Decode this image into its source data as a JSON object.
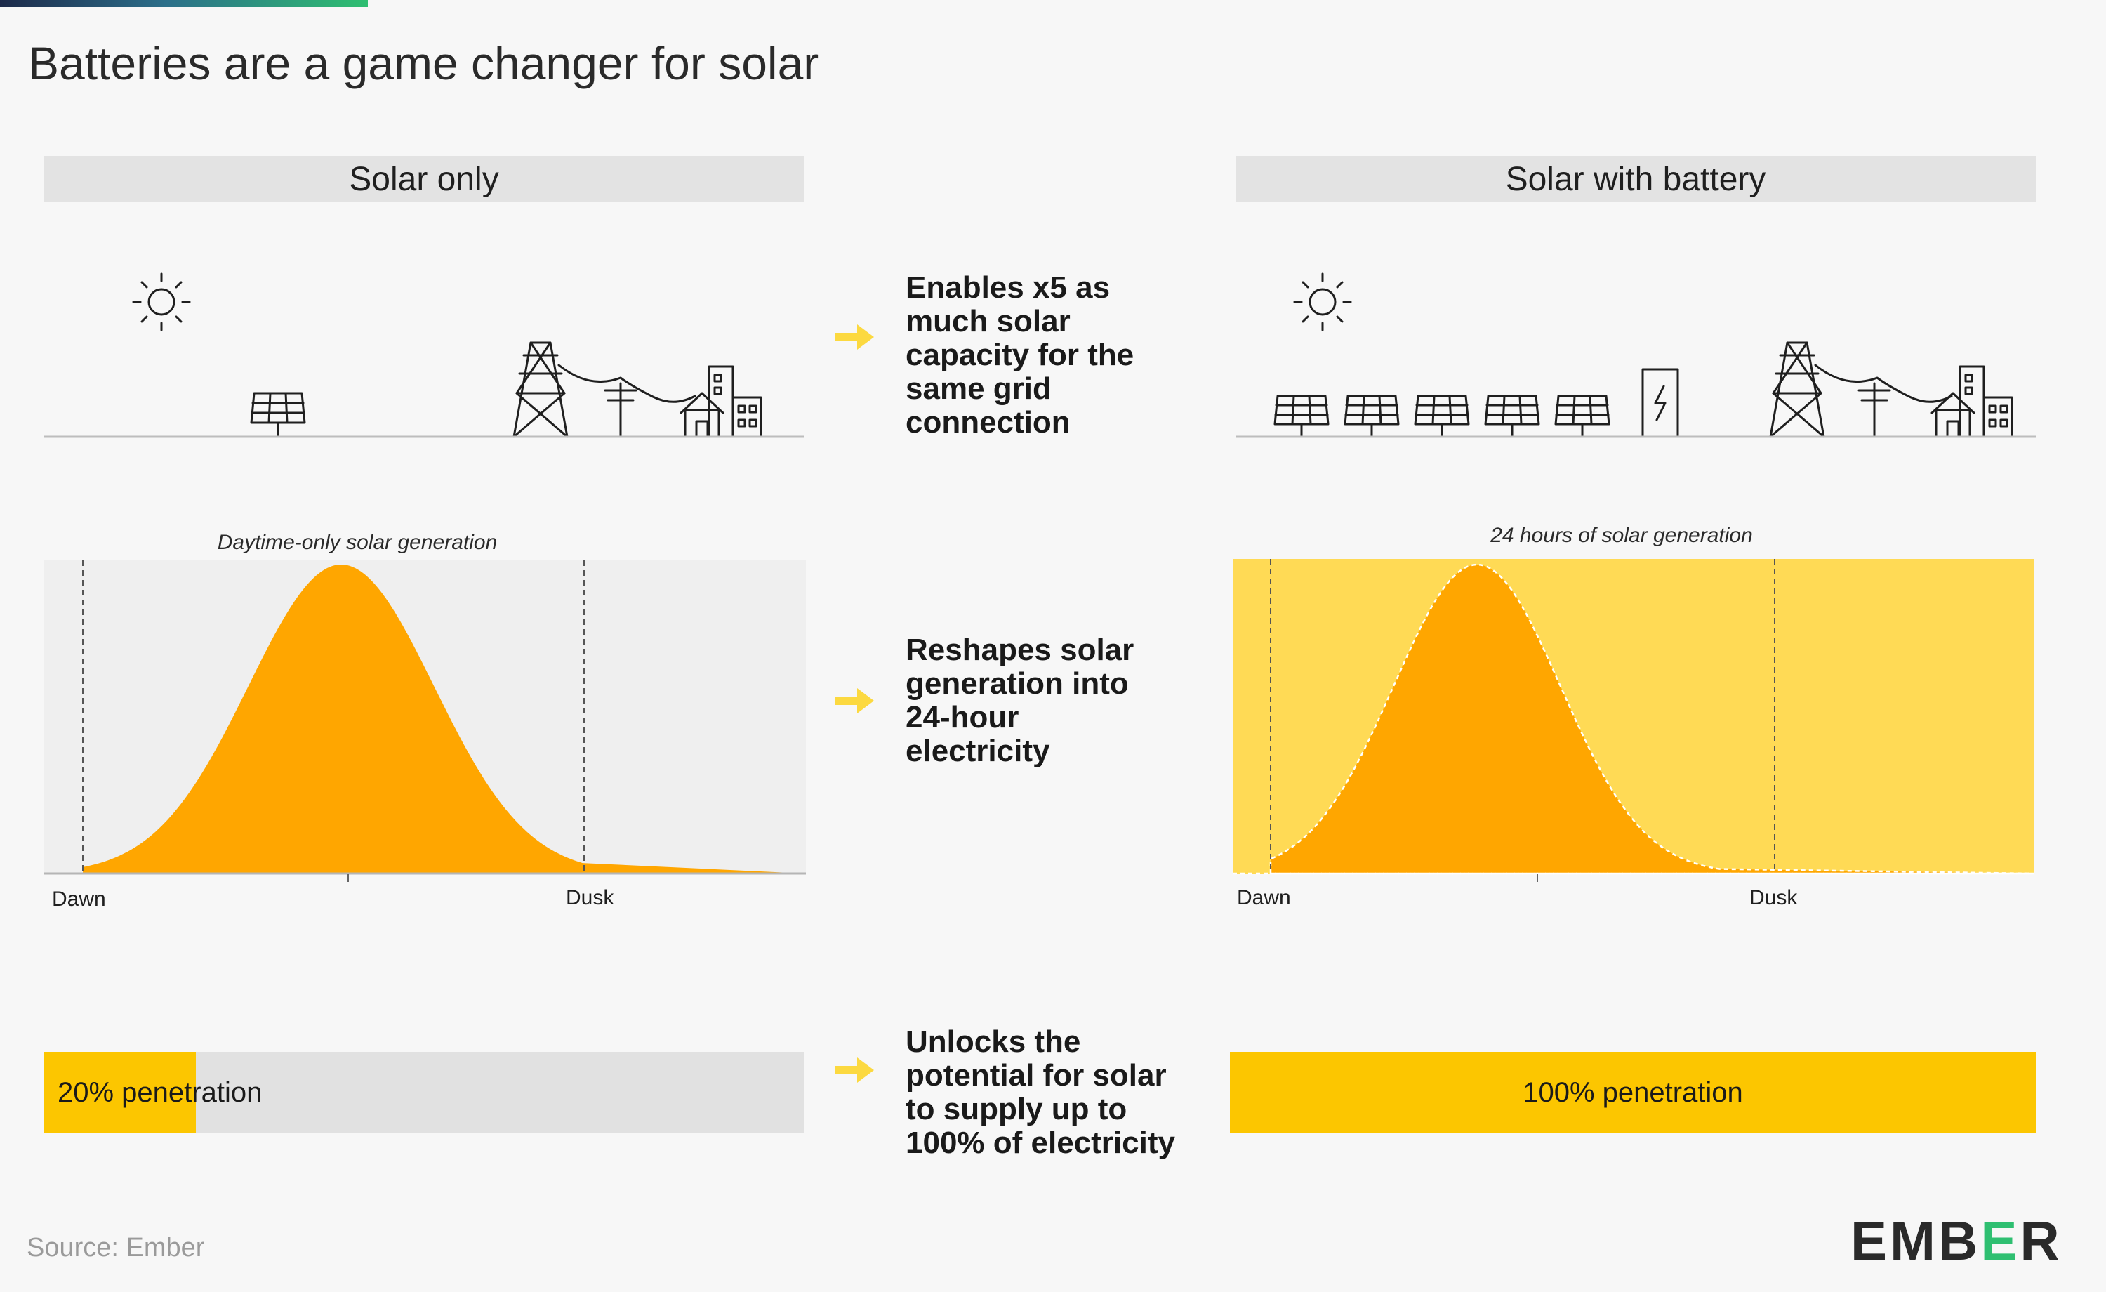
{
  "title": "Batteries are a game changer for solar",
  "panels": {
    "left": {
      "header": "Solar only",
      "chart_caption": "Daytime-only solar generation",
      "dawn_label": "Dawn",
      "dusk_label": "Dusk",
      "bar_label": "20% penetration",
      "penetration_fraction": 0.2
    },
    "right": {
      "header": "Solar with battery",
      "chart_caption": "24 hours of solar generation",
      "dawn_label": "Dawn",
      "dusk_label": "Dusk",
      "bar_label": "100% penetration",
      "penetration_fraction": 1.0
    }
  },
  "benefits": [
    {
      "text": "Enables x5 as\nmuch solar\ncapacity for the\nsame grid\nconnection"
    },
    {
      "text": "Reshapes solar\ngeneration into\n24-hour\nelectricity"
    },
    {
      "text": "Unlocks the\npotential for solar\nto supply up to\n100% of electricity"
    }
  ],
  "icons": {
    "left": [
      "sun-icon",
      "solar-panel-icon",
      "transmission-tower-icon",
      "utility-pole-icon",
      "house-icon",
      "building-icon"
    ],
    "right": [
      "sun-icon",
      "solar-panel-icon",
      "solar-panel-icon",
      "solar-panel-icon",
      "solar-panel-icon",
      "solar-panel-icon",
      "battery-icon",
      "transmission-tower-icon",
      "utility-pole-icon",
      "house-icon",
      "building-icon"
    ]
  },
  "colors": {
    "solar_orange": "#ffa600",
    "battery_yellow": "#ffda55",
    "bar_yellow": "#fcc600",
    "arrow_yellow": "#fcd940",
    "panel_grey": "#efefef",
    "ember_green": "#2fbf71"
  },
  "source": "Source: Ember",
  "logo": {
    "prefix": "EMB",
    "accent": "E",
    "suffix": "R"
  }
}
